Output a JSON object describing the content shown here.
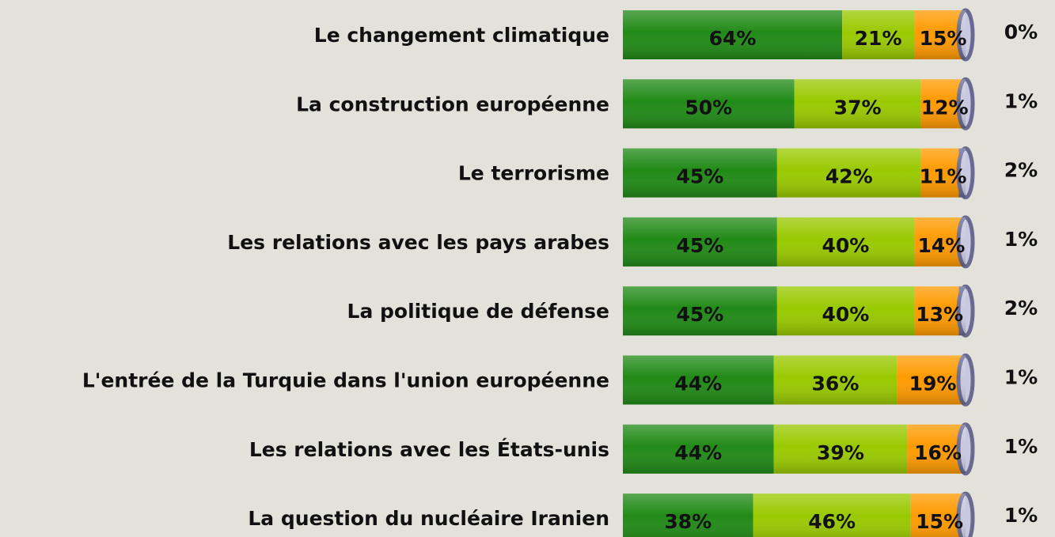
{
  "chart_data": {
    "type": "stacked-bar-horizontal",
    "categories": [
      "Le changement climatique",
      "La construction européenne",
      "Le terrorisme",
      "Les relations avec les pays arabes",
      "La politique de défense",
      "L'entrée de la Turquie dans l'union européenne",
      "Les relations avec les États-unis",
      "La question du nucléaire Iranien"
    ],
    "series": [
      {
        "color": "#218a17",
        "values": [
          64,
          50,
          45,
          45,
          45,
          44,
          44,
          38
        ],
        "value_labels": [
          "64%",
          "50%",
          "45%",
          "45%",
          "45%",
          "44%",
          "44%",
          "38%"
        ]
      },
      {
        "color": "#99c900",
        "values": [
          21,
          37,
          42,
          40,
          40,
          36,
          39,
          46
        ],
        "value_labels": [
          "21%",
          "37%",
          "42%",
          "40%",
          "40%",
          "36%",
          "39%",
          "46%"
        ]
      },
      {
        "color": "#ff9a00",
        "values": [
          15,
          12,
          11,
          14,
          13,
          19,
          16,
          15
        ],
        "value_labels": [
          "15%",
          "12%",
          "11%",
          "14%",
          "13%",
          "19%",
          "16%",
          "15%"
        ]
      },
      {
        "color": "#6a6a90",
        "values": [
          0,
          1,
          2,
          1,
          2,
          1,
          1,
          1
        ],
        "value_labels": [
          "0%",
          "1%",
          "2%",
          "1%",
          "2%",
          "1%",
          "1%",
          "1%"
        ]
      }
    ]
  }
}
